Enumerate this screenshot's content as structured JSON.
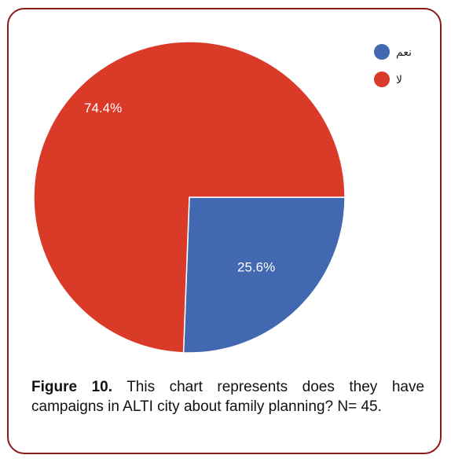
{
  "caption": {
    "figure_label": "Figure 10.",
    "text": "This chart represents does they have campaigns in ALTI city about family planning? N= 45."
  },
  "colors": {
    "frame": "#8b1a1a",
    "slice_yes": "#4168b0",
    "slice_no": "#da3a28"
  },
  "chart_data": {
    "type": "pie",
    "categories": [
      "نعم",
      "لا"
    ],
    "values": [
      25.6,
      74.4
    ],
    "unit": "%",
    "labels": [
      "25.6%",
      "74.4%"
    ],
    "colors": [
      "#4168b0",
      "#da3a28"
    ],
    "legend": {
      "entries": [
        "نعم",
        "لا"
      ],
      "placement": "top-right"
    },
    "start": "3 o'clock, clockwise"
  }
}
